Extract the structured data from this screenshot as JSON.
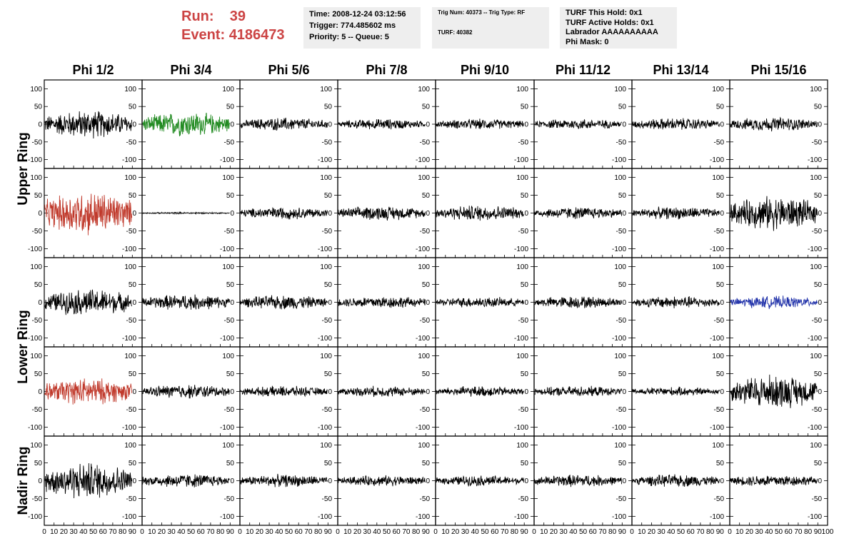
{
  "header": {
    "run_label": "Run:",
    "run_value": "39",
    "event_label": "Event:",
    "event_value": "4186473",
    "accent_color": "#cc4444"
  },
  "info1": {
    "time": "Time: 2008-12-24 03:12:56",
    "trigger": "Trigger: 774.485602 ms",
    "priority": "Priority: 5 -- Queue: 5"
  },
  "info2": {
    "trig": "Trig Num: 40373 -- Trig Type: RF",
    "turf": "TURF: 40382"
  },
  "info3": {
    "hold": "TURF This Hold: 0x1",
    "active": "TURF Active Holds: 0x1",
    "labrador": "Labrador AAAAAAAAAA",
    "phimask": "Phi Mask: 0"
  },
  "chart_data": {
    "type": "line",
    "title": "",
    "columns": [
      "Phi 1/2",
      "Phi 3/4",
      "Phi 5/6",
      "Phi 7/8",
      "Phi 9/10",
      "Phi 11/12",
      "Phi 13/14",
      "Phi 15/16"
    ],
    "row_groups": [
      {
        "label": "Upper Ring",
        "rows": [
          0,
          1
        ]
      },
      {
        "label": "Lower Ring",
        "rows": [
          2,
          3
        ]
      },
      {
        "label": "Nadir Ring",
        "rows": [
          4
        ]
      }
    ],
    "xlim": [
      0,
      100
    ],
    "ylim": [
      -125,
      125
    ],
    "x_ticks": [
      0,
      10,
      20,
      30,
      40,
      50,
      60,
      70,
      80,
      90,
      100
    ],
    "y_ticks": [
      -100,
      -50,
      0,
      50,
      100
    ],
    "trace_colors": {
      "default": "#000000",
      "green": "#228b22",
      "red": "#c0392b",
      "blue": "#2233aa"
    },
    "panels": [
      [
        {
          "amp": 32,
          "color": "default"
        },
        {
          "amp": 28,
          "color": "green"
        },
        {
          "amp": 15,
          "color": "default"
        },
        {
          "amp": 12,
          "color": "default"
        },
        {
          "amp": 12,
          "color": "default"
        },
        {
          "amp": 12,
          "color": "default"
        },
        {
          "amp": 14,
          "color": "default"
        },
        {
          "amp": 16,
          "color": "default"
        }
      ],
      [
        {
          "amp": 50,
          "color": "red"
        },
        {
          "amp": 2,
          "color": "default"
        },
        {
          "amp": 14,
          "color": "default"
        },
        {
          "amp": 16,
          "color": "default"
        },
        {
          "amp": 18,
          "color": "default"
        },
        {
          "amp": 14,
          "color": "default"
        },
        {
          "amp": 14,
          "color": "default"
        },
        {
          "amp": 38,
          "color": "default"
        }
      ],
      [
        {
          "amp": 30,
          "color": "default"
        },
        {
          "amp": 18,
          "color": "default"
        },
        {
          "amp": 16,
          "color": "default"
        },
        {
          "amp": 14,
          "color": "default"
        },
        {
          "amp": 12,
          "color": "default"
        },
        {
          "amp": 14,
          "color": "default"
        },
        {
          "amp": 14,
          "color": "default"
        },
        {
          "amp": 14,
          "color": "blue"
        }
      ],
      [
        {
          "amp": 30,
          "color": "red"
        },
        {
          "amp": 16,
          "color": "default"
        },
        {
          "amp": 12,
          "color": "default"
        },
        {
          "amp": 12,
          "color": "default"
        },
        {
          "amp": 12,
          "color": "default"
        },
        {
          "amp": 12,
          "color": "default"
        },
        {
          "amp": 10,
          "color": "default"
        },
        {
          "amp": 38,
          "color": "default"
        }
      ],
      [
        {
          "amp": 42,
          "color": "default"
        },
        {
          "amp": 16,
          "color": "default"
        },
        {
          "amp": 14,
          "color": "default"
        },
        {
          "amp": 12,
          "color": "default"
        },
        {
          "amp": 12,
          "color": "default"
        },
        {
          "amp": 14,
          "color": "default"
        },
        {
          "amp": 14,
          "color": "default"
        },
        {
          "amp": 14,
          "color": "default"
        }
      ]
    ]
  }
}
